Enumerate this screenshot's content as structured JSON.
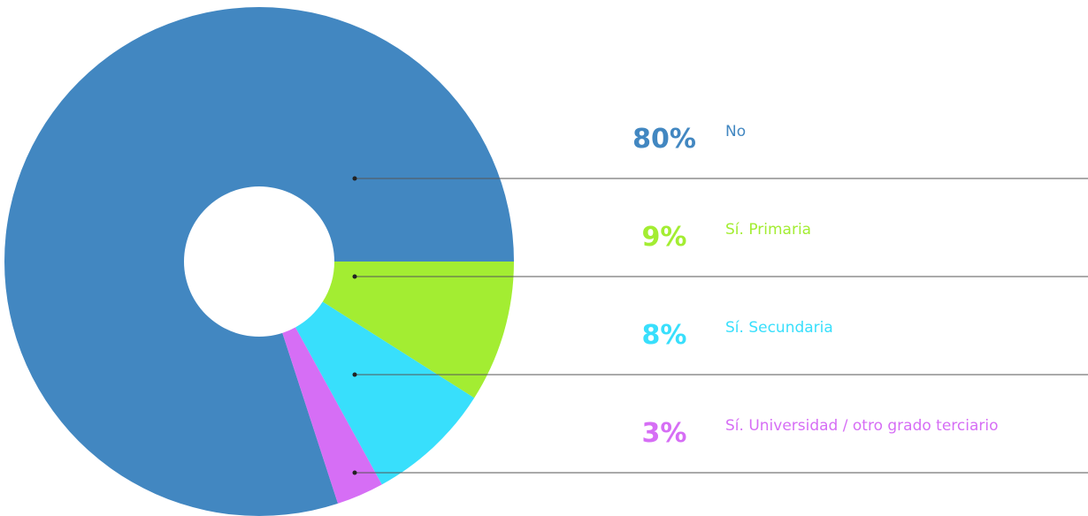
{
  "chart_data": {
    "type": "donut",
    "categories": [
      "No",
      "Sí. Primaria",
      "Sí. Secundaria",
      "Sí. Universidad / otro grado terciario"
    ],
    "values": [
      80,
      9,
      8,
      3
    ],
    "value_labels": [
      "80%",
      "9%",
      "8%",
      "3%"
    ],
    "colors": [
      "#4287c1",
      "#a3ed32",
      "#38dffc",
      "#d66ef5"
    ]
  }
}
